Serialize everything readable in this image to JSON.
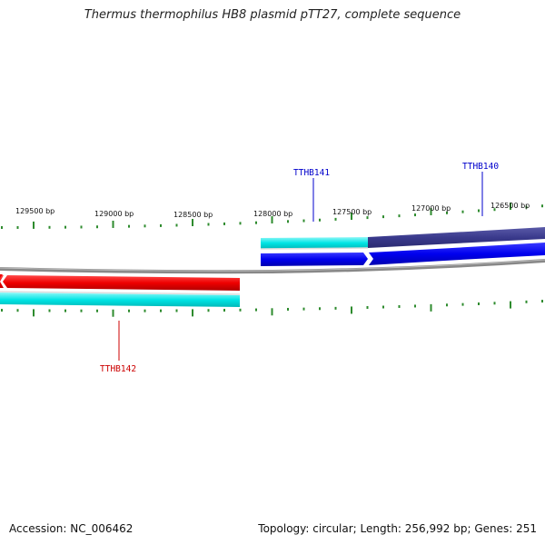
{
  "title": "Thermus thermophilus HB8 plasmid pTT27, complete sequence",
  "ruler": {
    "ticks": [
      {
        "label": "129500 bp"
      },
      {
        "label": "129000 bp"
      },
      {
        "label": "128500 bp"
      },
      {
        "label": "128000 bp"
      },
      {
        "label": "127500 bp"
      },
      {
        "label": "127000 bp"
      },
      {
        "label": "126500 bp"
      }
    ]
  },
  "genes": [
    {
      "name": "TTHB141",
      "color": "#0000cc"
    },
    {
      "name": "TTHB140",
      "color": "#0000cc"
    },
    {
      "name": "TTHB142",
      "color": "#cc0000"
    }
  ],
  "colors": {
    "tick": "#2e8b2e",
    "backbone": "#888888",
    "forward_gene": "#0000ee",
    "forward_gene_dark": "#3a3a8c",
    "reverse_gene": "#ee0000",
    "cds_band": "#00e5e5"
  },
  "footer": {
    "accession": "Accession: NC_006462",
    "info": "Topology: circular; Length: 256,992 bp; Genes: 251"
  }
}
